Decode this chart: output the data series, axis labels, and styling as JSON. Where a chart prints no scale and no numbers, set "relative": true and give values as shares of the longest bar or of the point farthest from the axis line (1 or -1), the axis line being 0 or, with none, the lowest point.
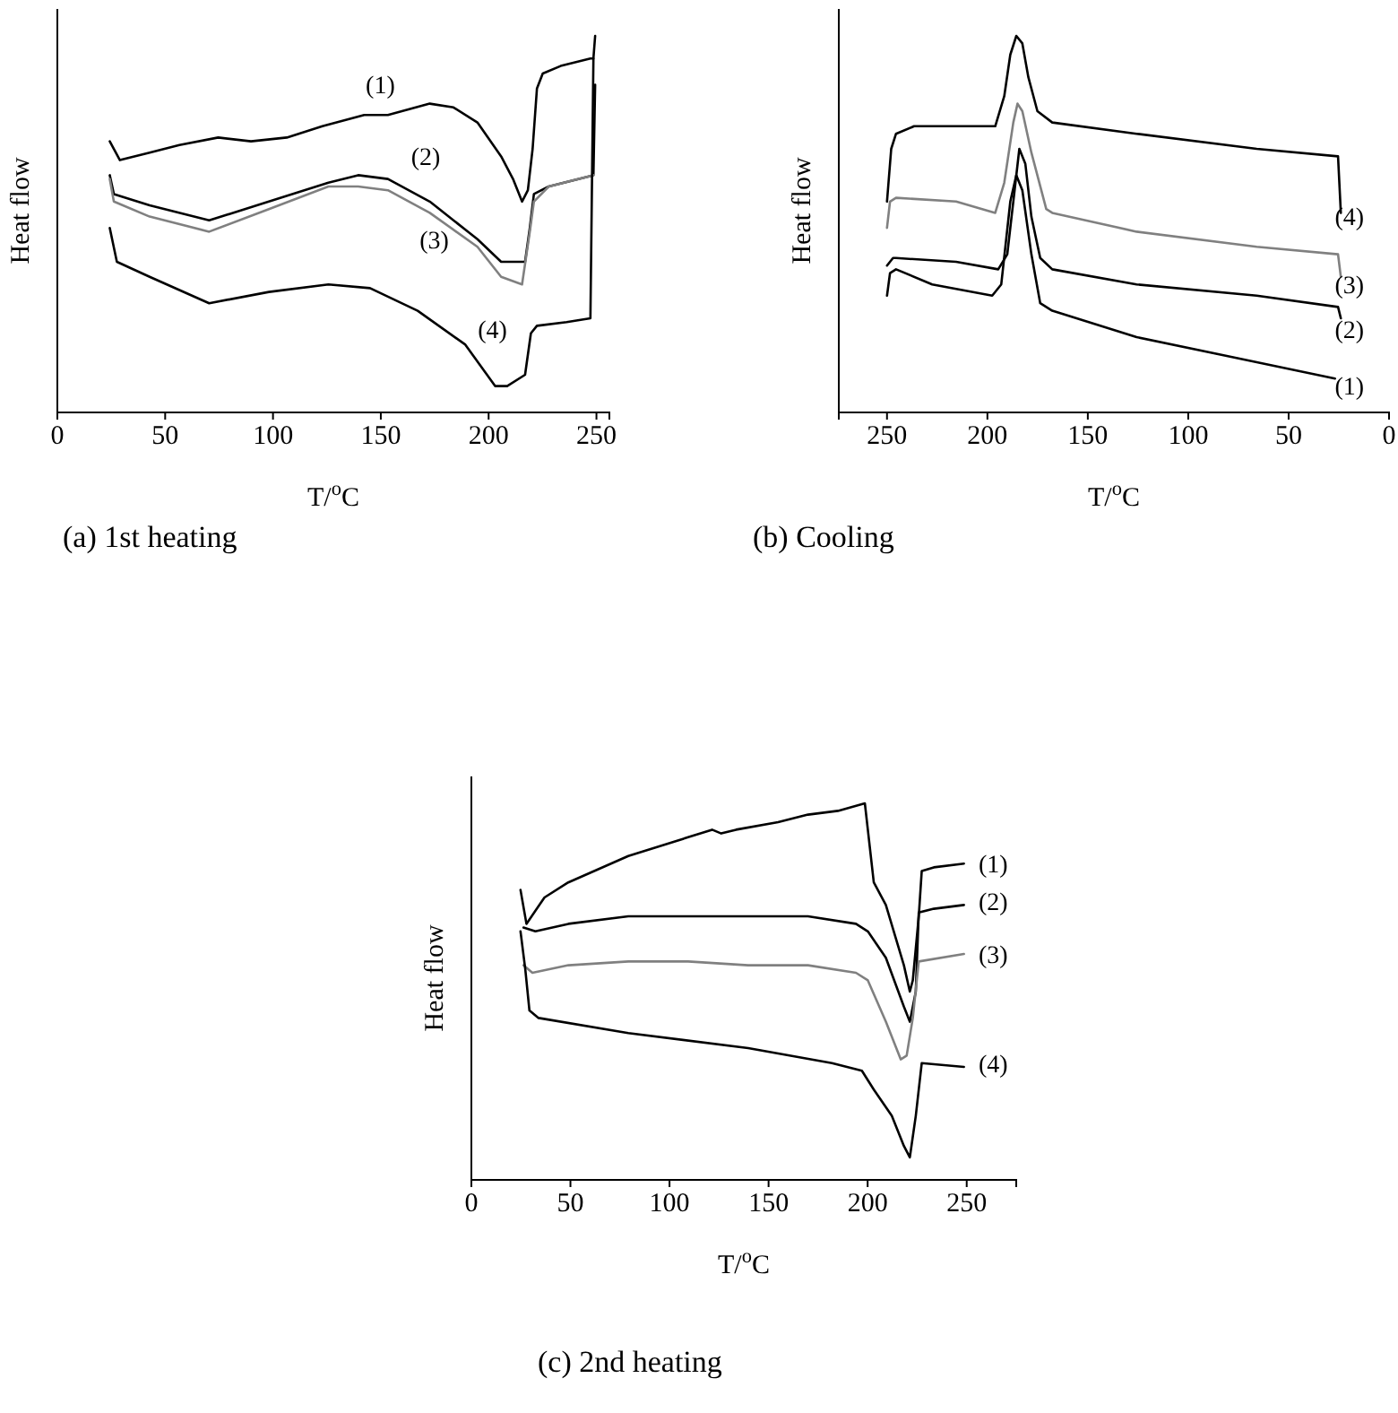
{
  "chart_data": [
    {
      "type": "line",
      "title": "(a) 1st heating",
      "xlabel": "T/$^{o}$C",
      "ylabel": "Heat flow",
      "relative": true,
      "xlim": [
        0,
        256
      ],
      "xticks": [
        0,
        50,
        100,
        150,
        200,
        250
      ],
      "tick_labels": "x",
      "legend": false,
      "series": [
        {
          "name": "(1)",
          "color": "#000000",
          "x": [
            24.3,
            29,
            42.8,
            56.6,
            74.6,
            89.8,
            106.4,
            122.9,
            142.3,
            153.3,
            172.7,
            183.7,
            194.8,
            205.8,
            211.3,
            215.5,
            218.2,
            220.4,
            222.4,
            225.1,
            233.4,
            247.2,
            248.6,
            249.4
          ],
          "values": [
            0.72,
            0.67,
            0.69,
            0.71,
            0.73,
            0.72,
            0.73,
            0.76,
            0.79,
            0.79,
            0.82,
            0.81,
            0.77,
            0.68,
            0.62,
            0.56,
            0.59,
            0.7,
            0.86,
            0.9,
            0.92,
            0.94,
            0.94,
            1.0
          ]
        },
        {
          "name": "(2)",
          "color": "#000000",
          "x": [
            24.3,
            26.2,
            42.8,
            70.4,
            98.1,
            125.7,
            139.5,
            153.3,
            172.7,
            194.8,
            205.8,
            216.9,
            219.1,
            221,
            227.9,
            248.6,
            249.4
          ],
          "values": [
            0.63,
            0.58,
            0.55,
            0.51,
            0.56,
            0.61,
            0.63,
            0.62,
            0.56,
            0.46,
            0.4,
            0.4,
            0.49,
            0.58,
            0.6,
            0.63,
            0.87
          ]
        },
        {
          "name": "(3)",
          "color": "#808080",
          "x": [
            24.3,
            26.2,
            42.8,
            70.4,
            98.1,
            125.7,
            139.5,
            153.3,
            172.7,
            194.8,
            205.8,
            215.5,
            219.1,
            221,
            227.9,
            248.6
          ],
          "values": [
            0.62,
            0.56,
            0.52,
            0.48,
            0.54,
            0.6,
            0.6,
            0.59,
            0.53,
            0.44,
            0.36,
            0.34,
            0.48,
            0.56,
            0.6,
            0.63
          ]
        },
        {
          "name": "(4)",
          "color": "#000000",
          "x": [
            24.3,
            27.6,
            42.8,
            70.4,
            98.1,
            125.7,
            145,
            167.1,
            189.2,
            203,
            208.6,
            216.9,
            219.6,
            222.4,
            236.2,
            247.2,
            248.6
          ],
          "values": [
            0.49,
            0.4,
            0.36,
            0.29,
            0.32,
            0.34,
            0.33,
            0.27,
            0.18,
            0.07,
            0.07,
            0.1,
            0.21,
            0.23,
            0.24,
            0.25,
            0.94
          ]
        }
      ]
    },
    {
      "type": "line",
      "title": "(b) Cooling",
      "xlabel": "T/$^{o}$C",
      "ylabel": "Heat flow",
      "relative": true,
      "xlim": [
        274,
        0
      ],
      "xticks": [
        250,
        200,
        150,
        100,
        50,
        0
      ],
      "tick_labels": "x",
      "legend": false,
      "series": [
        {
          "name": "(1)",
          "color": "#000000",
          "x": [
            250,
            248.5,
            245.5,
            227.5,
            197.6,
            193.1,
            188.6,
            185.6,
            182.6,
            178.1,
            173.7,
            167.7,
            125.7,
            80.8,
            26.9
          ],
          "values": [
            0.31,
            0.37,
            0.38,
            0.34,
            0.31,
            0.34,
            0.56,
            0.63,
            0.59,
            0.42,
            0.29,
            0.27,
            0.2,
            0.15,
            0.09
          ]
        },
        {
          "name": "(2)",
          "color": "#000000",
          "x": [
            250,
            247,
            245.5,
            215.6,
            194.6,
            190.1,
            187.1,
            184.1,
            181.1,
            178.1,
            173.7,
            167.7,
            125.7,
            65.9,
            25.4,
            24
          ],
          "values": [
            0.39,
            0.41,
            0.41,
            0.4,
            0.38,
            0.42,
            0.56,
            0.7,
            0.66,
            0.52,
            0.41,
            0.38,
            0.34,
            0.31,
            0.28,
            0.25
          ]
        },
        {
          "name": "(3)",
          "color": "#808080",
          "x": [
            250,
            248.5,
            245.5,
            215.6,
            196.1,
            191.6,
            187.1,
            185,
            182.6,
            178.1,
            170.7,
            167.7,
            125.7,
            65.9,
            25.4,
            24
          ],
          "values": [
            0.49,
            0.56,
            0.57,
            0.56,
            0.53,
            0.61,
            0.77,
            0.82,
            0.8,
            0.69,
            0.54,
            0.53,
            0.48,
            0.44,
            0.42,
            0.36
          ]
        },
        {
          "name": "(4)",
          "color": "#000000",
          "x": [
            250,
            247.9,
            245.5,
            236.5,
            215.6,
            196.1,
            191.6,
            188.6,
            185.6,
            182.6,
            179.6,
            175.1,
            167.7,
            125.7,
            65.9,
            25.4,
            24
          ],
          "values": [
            0.56,
            0.7,
            0.74,
            0.76,
            0.76,
            0.76,
            0.84,
            0.95,
            1.0,
            0.98,
            0.89,
            0.8,
            0.77,
            0.74,
            0.7,
            0.68,
            0.53
          ]
        }
      ]
    },
    {
      "type": "line",
      "title": "(c) 2nd heating",
      "xlabel": "T/$^{o}$C",
      "ylabel": "Heat flow",
      "relative": true,
      "xlim": [
        0,
        275
      ],
      "xticks": [
        0,
        50,
        100,
        150,
        200,
        250
      ],
      "tick_labels": "x",
      "legend": false,
      "series": [
        {
          "name": "(1)",
          "color": "#000000",
          "x": [
            24.8,
            27.8,
            36.9,
            48.9,
            79.2,
            109.4,
            121.5,
            126.1,
            133.6,
            154.8,
            169.9,
            185,
            198.6,
            200.1,
            203.1,
            209.2,
            218.3,
            221.3,
            222.8,
            225.8,
            227.3,
            233.4,
            248.6
          ],
          "values": [
            0.77,
            0.68,
            0.75,
            0.79,
            0.86,
            0.91,
            0.93,
            0.92,
            0.93,
            0.95,
            0.97,
            0.98,
            1.0,
            0.93,
            0.79,
            0.73,
            0.57,
            0.5,
            0.53,
            0.7,
            0.82,
            0.83,
            0.84
          ]
        },
        {
          "name": "(2)",
          "color": "#000000",
          "x": [
            26.3,
            32.3,
            49,
            79.2,
            109.4,
            139.7,
            169.9,
            194.1,
            200.1,
            209.2,
            218.3,
            221.3,
            224.3,
            225.8,
            233.4,
            248.6
          ],
          "values": [
            0.67,
            0.66,
            0.68,
            0.7,
            0.7,
            0.7,
            0.7,
            0.68,
            0.66,
            0.59,
            0.46,
            0.42,
            0.5,
            0.71,
            0.72,
            0.73
          ]
        },
        {
          "name": "(3)",
          "color": "#808080",
          "x": [
            26.3,
            30.8,
            49,
            79.2,
            109.4,
            139.7,
            169.9,
            194.1,
            200.1,
            209.2,
            216.7,
            219.7,
            222.8,
            225.8,
            248.6
          ],
          "values": [
            0.57,
            0.55,
            0.57,
            0.58,
            0.58,
            0.57,
            0.57,
            0.55,
            0.53,
            0.42,
            0.32,
            0.33,
            0.43,
            0.58,
            0.6
          ]
        },
        {
          "name": "(4)",
          "color": "#000000",
          "x": [
            24.8,
            27.2,
            29.3,
            33.9,
            79.2,
            139.7,
            182,
            197.1,
            203.1,
            212.2,
            218.3,
            221.3,
            224.3,
            227.3,
            248.6
          ],
          "values": [
            0.66,
            0.56,
            0.45,
            0.43,
            0.39,
            0.35,
            0.31,
            0.29,
            0.24,
            0.17,
            0.09,
            0.06,
            0.17,
            0.31,
            0.3
          ]
        }
      ]
    }
  ]
}
